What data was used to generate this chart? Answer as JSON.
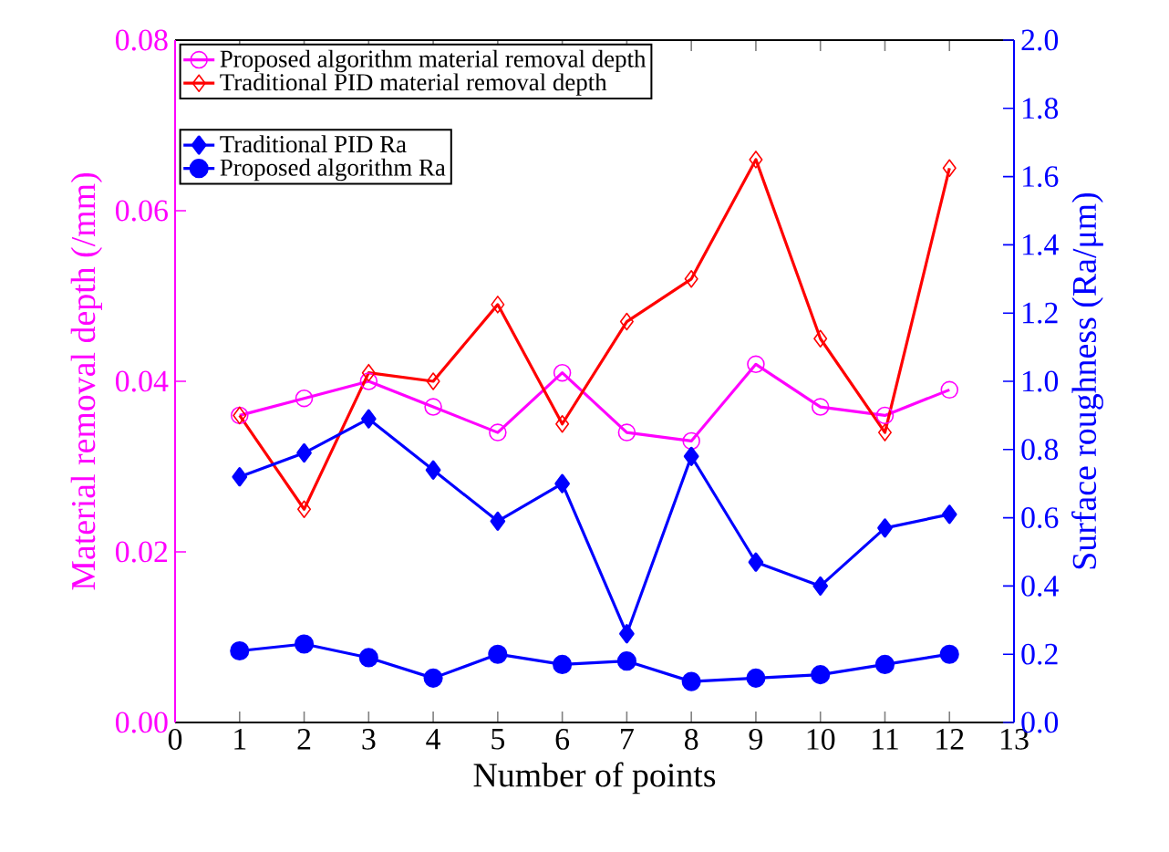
{
  "chart_data": {
    "type": "line",
    "xlabel": "Number of points",
    "ylabel": "Material removal depth (/mm)",
    "y2label": "Surface roughness (Ra/μm)",
    "x": [
      1,
      2,
      3,
      4,
      5,
      6,
      7,
      8,
      9,
      10,
      11,
      12
    ],
    "xlim": [
      0,
      13
    ],
    "xticks": [
      0,
      1,
      2,
      3,
      4,
      5,
      6,
      7,
      8,
      9,
      10,
      11,
      12,
      13
    ],
    "ylim": [
      0,
      0.08
    ],
    "yticks": [
      {
        "value": 0,
        "label": "0.00"
      },
      {
        "value": 0.02,
        "label": "0.02"
      },
      {
        "value": 0.04,
        "label": "0.04"
      },
      {
        "value": 0.06,
        "label": "0.06"
      },
      {
        "value": 0.08,
        "label": "0.08"
      }
    ],
    "y2lim": [
      0,
      2
    ],
    "y2ticks": [
      {
        "value": 0,
        "label": "0.0"
      },
      {
        "value": 0.2,
        "label": "0.2"
      },
      {
        "value": 0.4,
        "label": "0.4"
      },
      {
        "value": 0.6,
        "label": "0.6"
      },
      {
        "value": 0.8,
        "label": "0.8"
      },
      {
        "value": 1.0,
        "label": "1.0"
      },
      {
        "value": 1.2,
        "label": "1.2"
      },
      {
        "value": 1.4,
        "label": "1.4"
      },
      {
        "value": 1.6,
        "label": "1.6"
      },
      {
        "value": 1.8,
        "label": "1.8"
      },
      {
        "value": 2.0,
        "label": "2.0"
      }
    ],
    "legend": "top left",
    "grid": false,
    "series": [
      {
        "name": "Proposed algorithm material removal depth",
        "color": "#ff00ff",
        "marker": "circle",
        "values": [
          0.036,
          0.038,
          0.04,
          0.037,
          0.034,
          0.041,
          0.034,
          0.033,
          0.042,
          0.037,
          0.036,
          0.039
        ]
      },
      {
        "name": "Traditional PID material removal depth",
        "color": "#ff0000",
        "marker": "diamond",
        "values": [
          0.036,
          0.025,
          0.041,
          0.04,
          0.049,
          0.035,
          0.047,
          0.052,
          0.066,
          0.045,
          0.034,
          0.065
        ]
      },
      {
        "name": "Traditional PID Ra",
        "color": "#0000ff",
        "marker": "diamond",
        "axis": "y2",
        "values": [
          0.72,
          0.79,
          0.89,
          0.74,
          0.59,
          0.7,
          0.26,
          0.78,
          0.47,
          0.4,
          0.57,
          0.61
        ]
      },
      {
        "name": "Proposed algorithm Ra",
        "color": "#0000ff",
        "marker": "circle",
        "axis": "y2",
        "values": [
          0.21,
          0.23,
          0.19,
          0.13,
          0.2,
          0.17,
          0.18,
          0.12,
          0.13,
          0.14,
          0.17,
          0.2
        ]
      }
    ]
  }
}
